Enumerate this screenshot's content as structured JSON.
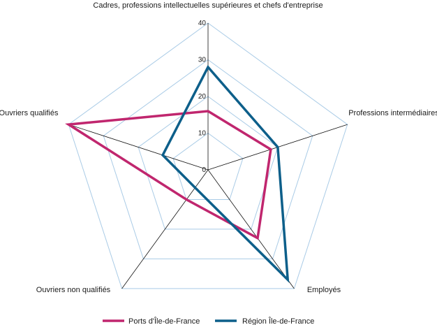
{
  "chart_data": {
    "type": "radar",
    "axes": [
      "Cadres, professions intellectuelles supérieures et chefs d'entreprise",
      "Professions intermédiaires",
      "Employés",
      "Ouvriers non qualifiés",
      "Ouvriers qualifiés"
    ],
    "ticks": [
      "0",
      "10",
      "20",
      "30",
      "40"
    ],
    "range": [
      0,
      40
    ],
    "series": [
      {
        "name": "Ports d'Île-de-France",
        "values": [
          16,
          18,
          23,
          10,
          40
        ],
        "color": "#c0266e"
      },
      {
        "name": "Région Île-de-France",
        "values": [
          28,
          20,
          37,
          6,
          13
        ],
        "color": "#0d5f8a"
      }
    ],
    "grid": true,
    "grid_color": "#a9cbe6",
    "spoke_color": "#111111",
    "legend_position": "bottom"
  }
}
